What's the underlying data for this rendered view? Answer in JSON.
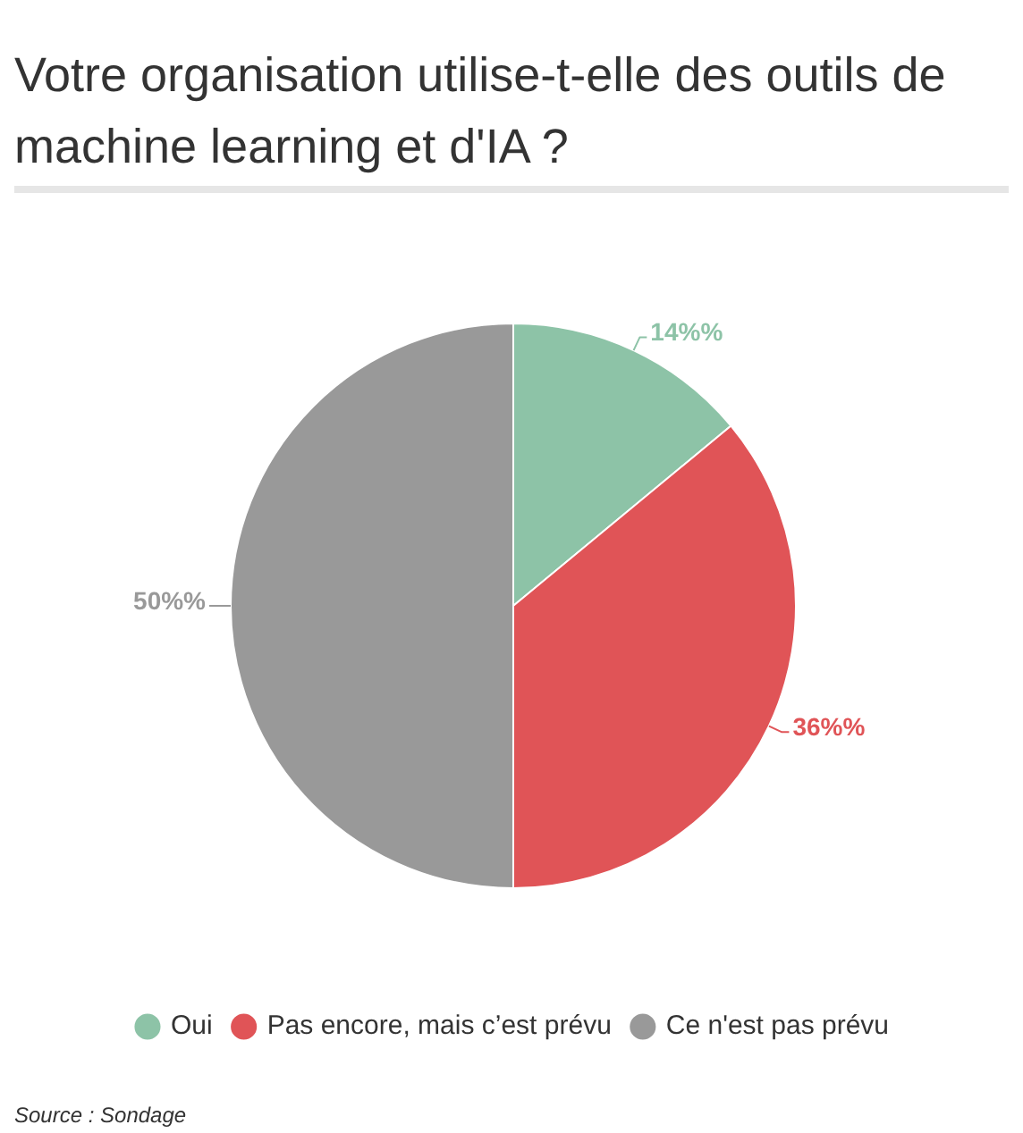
{
  "chart_data": {
    "type": "pie",
    "title": "Votre organisation utilise-t-elle des outils de machine learning et d'IA ?",
    "categories": [
      "Oui",
      "Pas encore, mais c’est prévu",
      "Ce n'est pas prévu"
    ],
    "values": [
      14,
      36,
      50
    ],
    "colors": [
      "#8dc3a7",
      "#e05457",
      "#999999"
    ],
    "value_labels": [
      "14%%",
      "36%%",
      "50%%"
    ],
    "legend": "bottom",
    "annotations": [
      "Source : Sondage"
    ]
  }
}
